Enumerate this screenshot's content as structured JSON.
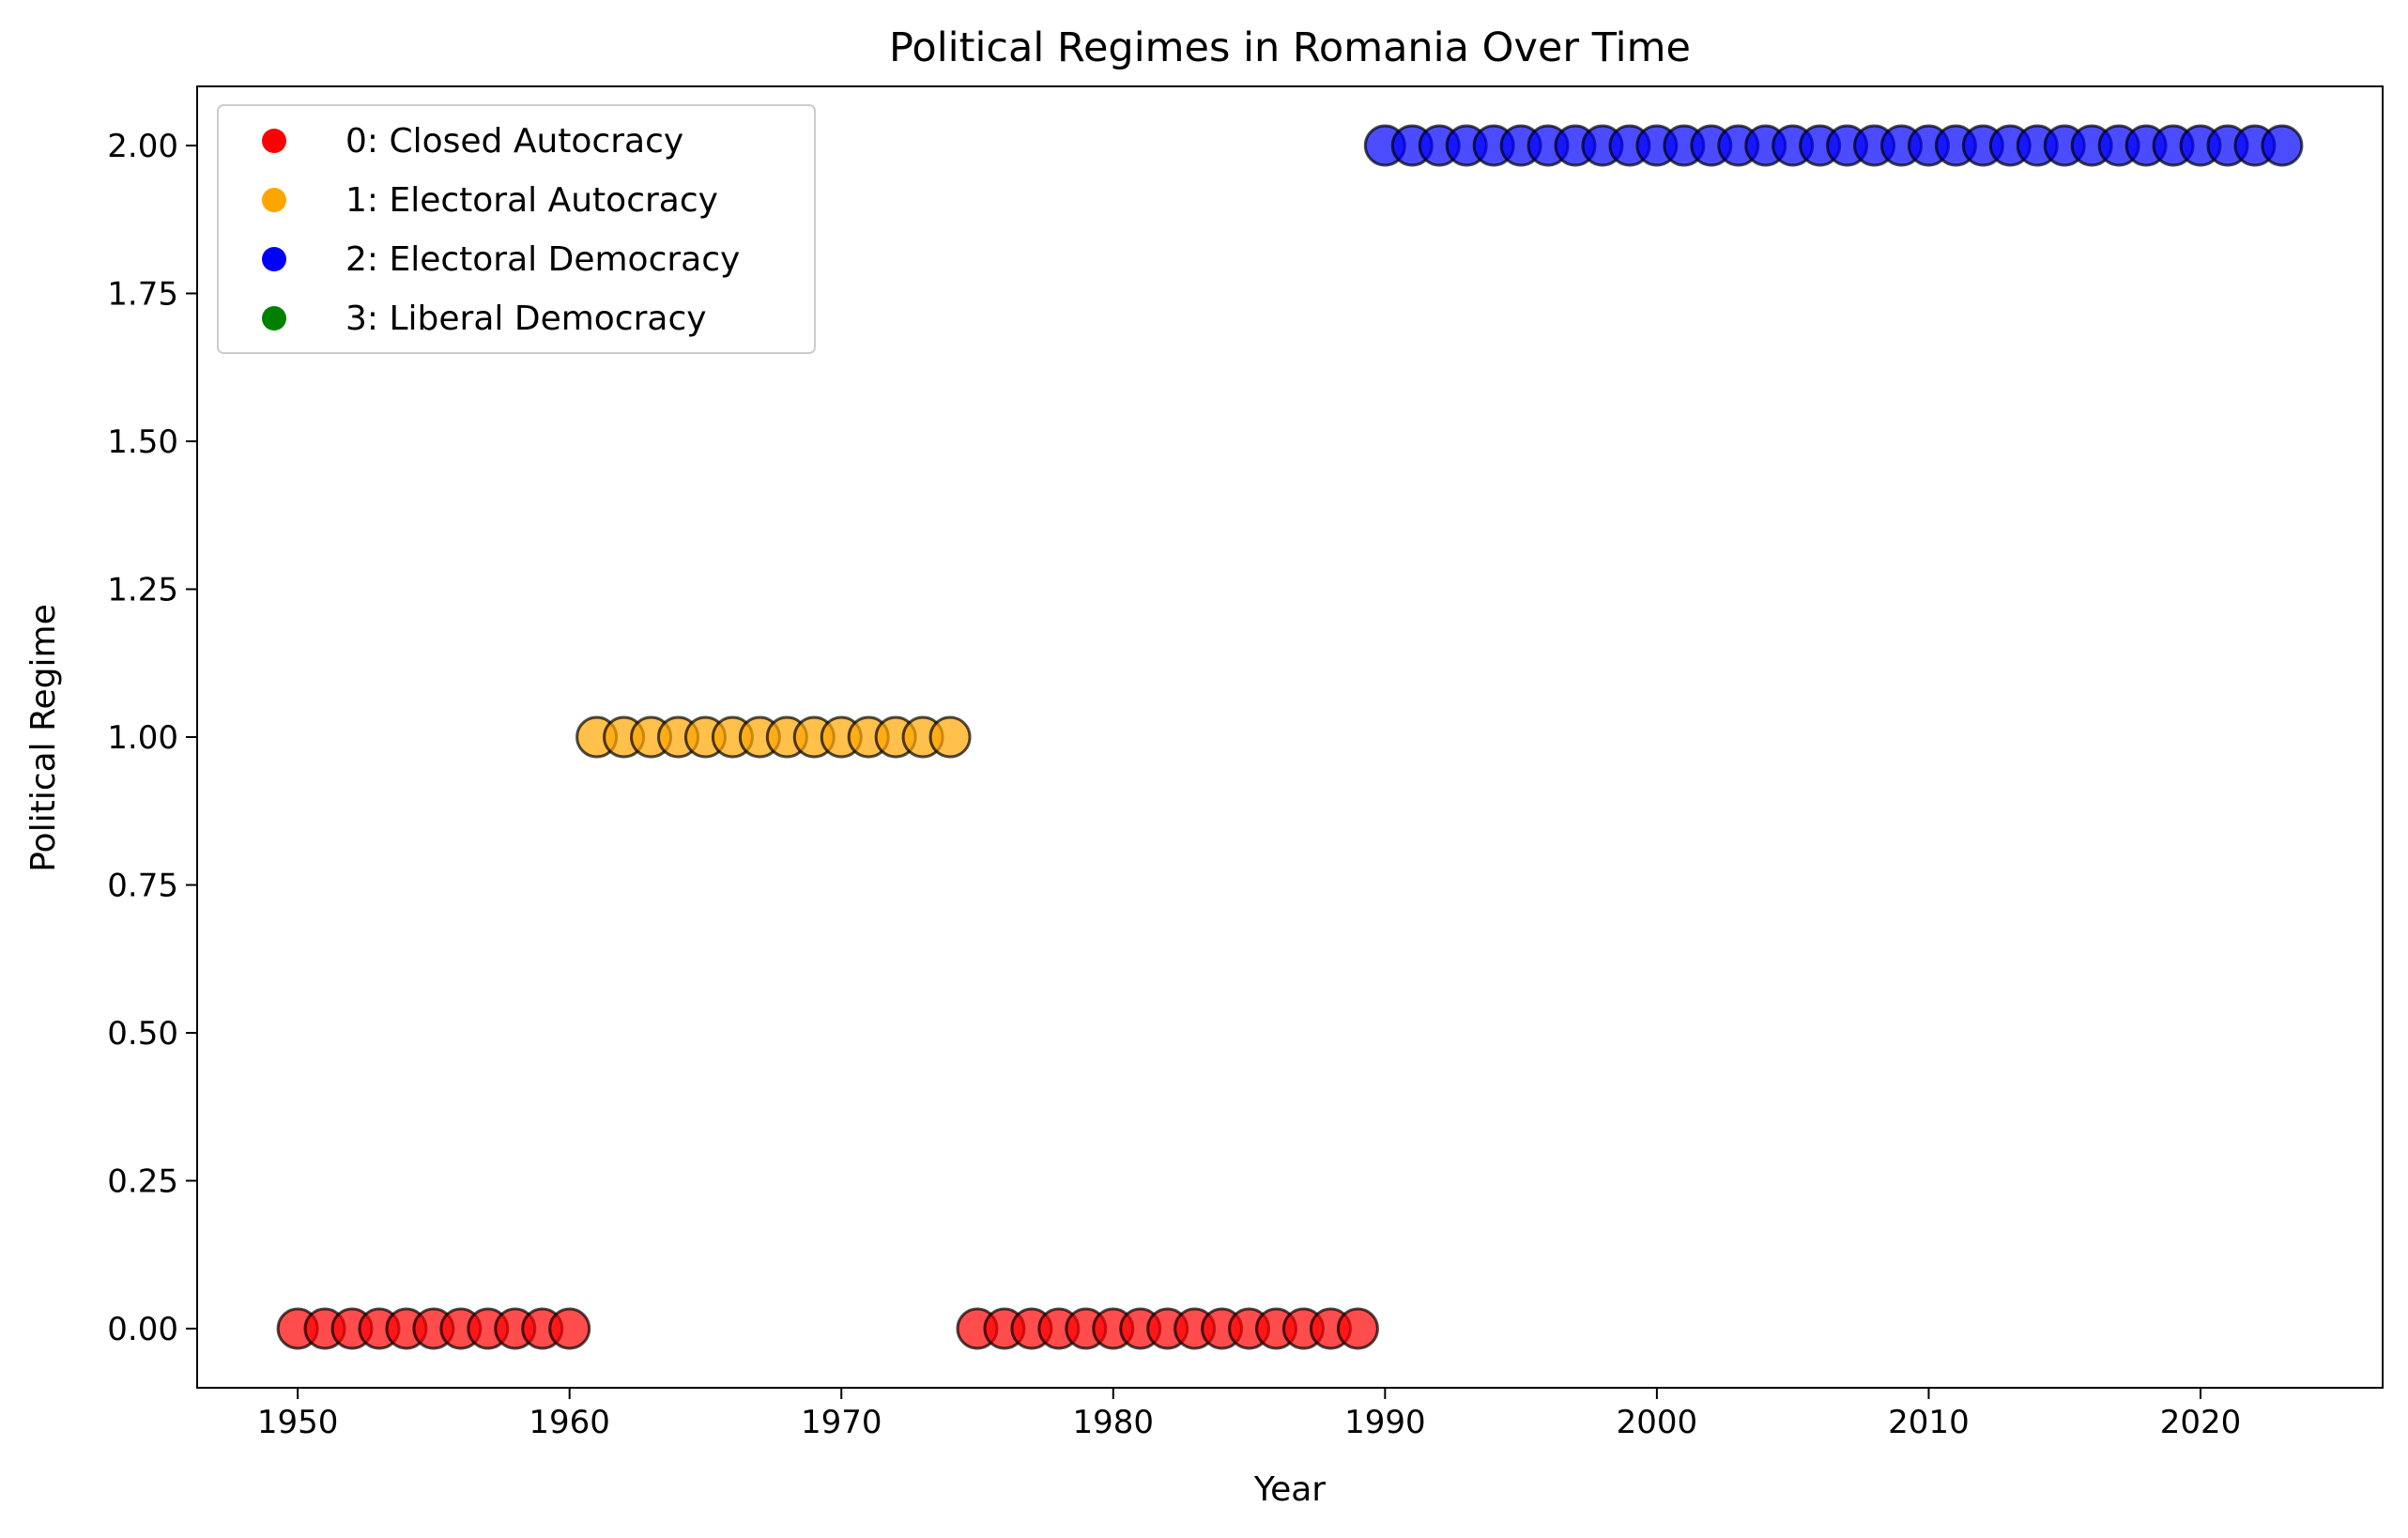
{
  "chart_data": {
    "type": "scatter",
    "title": "Political Regimes in Romania Over Time",
    "xlabel": "Year",
    "ylabel": "Political Regime",
    "xlim": [
      1946.3,
      2026.7
    ],
    "ylim": [
      -0.1,
      2.1
    ],
    "xticks": [
      1950,
      1960,
      1970,
      1980,
      1990,
      2000,
      2010,
      2020
    ],
    "xtick_labels": [
      "1950",
      "1960",
      "1970",
      "1980",
      "1990",
      "2000",
      "2010",
      "2020"
    ],
    "yticks": [
      0,
      0.25,
      0.5,
      0.75,
      1.0,
      1.25,
      1.5,
      1.75,
      2.0
    ],
    "ytick_labels": [
      "0.00",
      "0.25",
      "0.50",
      "0.75",
      "1.00",
      "1.25",
      "1.50",
      "1.75",
      "2.00"
    ],
    "grid": false,
    "legend_position": "top-left",
    "legend": [
      {
        "label": "0: Closed Autocracy",
        "color": "#ff0000"
      },
      {
        "label": "1: Electoral Autocracy",
        "color": "#ffa500"
      },
      {
        "label": "2: Electoral Democracy",
        "color": "#0000ff"
      },
      {
        "label": "3: Liberal Democracy",
        "color": "#008000"
      }
    ],
    "series": [
      {
        "value": 0,
        "color": "#ff0000",
        "x": [
          1950,
          1951,
          1952,
          1953,
          1954,
          1955,
          1956,
          1957,
          1958,
          1959,
          1960,
          1975,
          1976,
          1977,
          1978,
          1979,
          1980,
          1981,
          1982,
          1983,
          1984,
          1985,
          1986,
          1987,
          1988,
          1989
        ]
      },
      {
        "value": 1,
        "color": "#ffa500",
        "x": [
          1961,
          1962,
          1963,
          1964,
          1965,
          1966,
          1967,
          1968,
          1969,
          1970,
          1971,
          1972,
          1973,
          1974
        ]
      },
      {
        "value": 2,
        "color": "#0000ff",
        "x": [
          1990,
          1991,
          1992,
          1993,
          1994,
          1995,
          1996,
          1997,
          1998,
          1999,
          2000,
          2001,
          2002,
          2003,
          2004,
          2005,
          2006,
          2007,
          2008,
          2009,
          2010,
          2011,
          2012,
          2013,
          2014,
          2015,
          2016,
          2017,
          2018,
          2019,
          2020,
          2021,
          2022,
          2023
        ]
      }
    ]
  }
}
